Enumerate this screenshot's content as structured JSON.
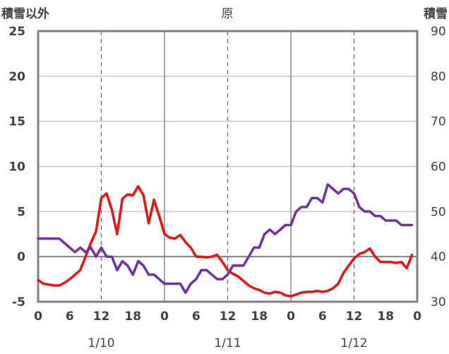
{
  "chart_data": {
    "type": "line",
    "title": "原",
    "left_axis_label": "積雪以外",
    "right_axis_label": "積雪",
    "ylim_left": [
      -5,
      25
    ],
    "ylim_right": [
      30,
      90
    ],
    "yticks_left": [
      "-5",
      "0",
      "5",
      "10",
      "15",
      "20",
      "25"
    ],
    "yticks_right": [
      "30",
      "40",
      "50",
      "60",
      "70",
      "80",
      "90"
    ],
    "x_range_hours": [
      0,
      72
    ],
    "xtick_labels": [
      "0",
      "6",
      "12",
      "18",
      "0",
      "6",
      "12",
      "18",
      "0",
      "6",
      "12",
      "18",
      "0"
    ],
    "date_labels": [
      "1/10",
      "1/11",
      "1/12"
    ],
    "grid": true,
    "series": [
      {
        "axis": "left",
        "color": "#ee1111",
        "x": [
          0,
          1,
          2,
          3,
          4,
          5,
          6,
          7,
          8,
          9,
          10,
          11,
          12,
          13,
          14,
          15,
          16,
          17,
          18,
          19,
          20,
          21,
          22,
          23,
          24,
          25,
          26,
          27,
          28,
          29,
          30,
          31,
          32,
          33,
          34,
          35,
          36,
          37,
          38,
          39,
          40,
          41,
          42,
          43,
          44,
          45,
          46,
          47,
          48,
          49,
          50,
          51,
          52,
          53,
          54,
          55,
          56,
          57,
          58,
          59,
          60,
          61,
          62,
          63,
          64,
          65,
          66,
          67,
          68,
          69,
          70,
          71
        ],
        "values": [
          -2.6,
          -3.0,
          -3.1,
          -3.2,
          -3.2,
          -2.9,
          -2.5,
          -2.0,
          -1.5,
          0.0,
          1.5,
          2.8,
          6.5,
          7.0,
          5.2,
          2.5,
          6.4,
          6.9,
          6.8,
          7.8,
          6.8,
          3.7,
          6.3,
          4.5,
          2.5,
          2.1,
          2.0,
          2.4,
          1.6,
          1.0,
          0.0,
          0.0,
          -0.1,
          0.0,
          0.2,
          -0.6,
          -1.5,
          -1.9,
          -2.2,
          -2.7,
          -3.2,
          -3.5,
          -3.7,
          -4.0,
          -4.1,
          -3.9,
          -4.0,
          -4.3,
          -4.4,
          -4.2,
          -4.0,
          -3.9,
          -3.9,
          -3.8,
          -3.9,
          -3.8,
          -3.5,
          -3.0,
          -1.8,
          -1.0,
          -0.2,
          0.3,
          0.5,
          0.9,
          0.0,
          -0.6,
          -0.6,
          -0.6,
          -0.7,
          -0.6,
          -1.3,
          0.2
        ]
      },
      {
        "axis": "right",
        "color": "#7030a0",
        "x": [
          0,
          1,
          2,
          3,
          4,
          5,
          6,
          7,
          8,
          9,
          10,
          11,
          12,
          13,
          14,
          15,
          16,
          17,
          18,
          19,
          20,
          21,
          22,
          23,
          24,
          25,
          26,
          27,
          28,
          29,
          30,
          31,
          32,
          33,
          34,
          35,
          36,
          37,
          38,
          39,
          40,
          41,
          42,
          43,
          44,
          45,
          46,
          47,
          48,
          49,
          50,
          51,
          52,
          53,
          54,
          55,
          56,
          57,
          58,
          59,
          60,
          61,
          62,
          63,
          64,
          65,
          66,
          67,
          68,
          69,
          70,
          71
        ],
        "values": [
          44,
          44,
          44,
          44,
          44,
          43,
          42,
          41,
          42,
          41,
          42,
          40,
          42,
          40,
          40,
          37,
          39,
          38,
          36,
          39,
          38,
          36,
          36,
          35,
          34,
          34,
          34,
          34,
          32,
          34,
          35,
          37,
          37,
          36,
          35,
          35,
          36,
          38,
          38,
          38,
          40,
          42,
          42,
          45,
          46,
          45,
          46,
          47,
          47,
          50,
          51,
          51,
          53,
          53,
          52,
          56,
          55,
          54,
          55,
          55,
          54,
          51,
          50,
          50,
          49,
          49,
          48,
          48,
          48,
          47,
          47,
          47
        ]
      }
    ]
  }
}
